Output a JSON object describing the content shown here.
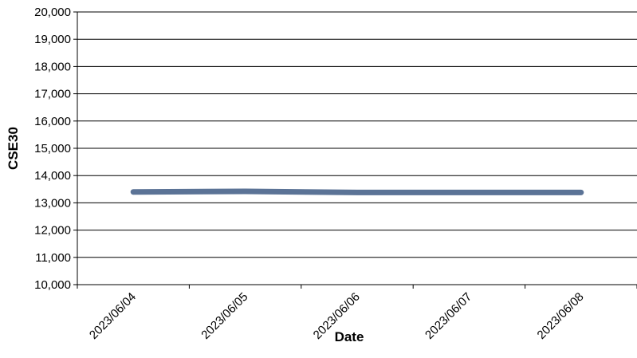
{
  "chart_data": {
    "type": "line",
    "title": "",
    "xlabel": "Date",
    "ylabel": "CSE30",
    "categories": [
      "2023/06/04",
      "2023/06/05",
      "2023/06/06",
      "2023/06/07",
      "2023/06/08"
    ],
    "series": [
      {
        "values": [
          13400,
          13420,
          13380,
          13380,
          13380
        ]
      }
    ],
    "ylim": [
      10000,
      20000
    ],
    "y_ticks": [
      "10,000",
      "11,000",
      "12,000",
      "13,000",
      "14,000",
      "15,000",
      "16,000",
      "17,000",
      "18,000",
      "19,000",
      "20,000"
    ],
    "grid": "horizontal",
    "legend": "none",
    "colors": {
      "line": "#5b7396",
      "grid": "#000000",
      "axis": "#000000"
    }
  }
}
